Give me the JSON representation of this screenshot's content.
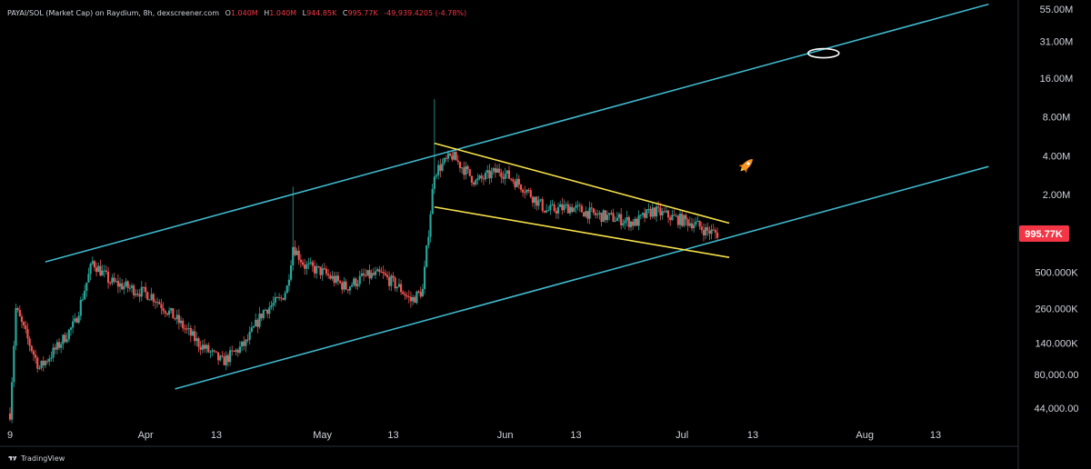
{
  "header": {
    "symbol": "PAYAI/SOL (Market Cap) on Raydium, 8h, dexscreener.com",
    "open_key": "O",
    "open_val": "1.040M",
    "high_key": "H",
    "high_val": "1.040M",
    "low_key": "L",
    "low_val": "944.85K",
    "close_key": "C",
    "close_val": "995.77K",
    "change_val": "-49,939.4205 (-4.78%)"
  },
  "branding": {
    "label": "TradingView"
  },
  "colors": {
    "background": "#000000",
    "up": "#26a69a",
    "down": "#ef5350",
    "channel": "#3fb8cc",
    "wedge": "#f5e04a",
    "price_label_bg": "#f23645",
    "axis_text": "#d1d4dc"
  },
  "icons": {
    "rocket": "rocket-icon",
    "ellipse": "ellipse-annotation-icon"
  },
  "chart_data": {
    "type": "candlestick",
    "title": "",
    "y_scale": "log",
    "y_ticks": [
      "55.00M",
      "31.00M",
      "16.00M",
      "8.00M",
      "4.00M",
      "2.00M",
      "500.000K",
      "260.000K",
      "140.000K",
      "80,000.00",
      "44,000.00"
    ],
    "y_tick_values": [
      55000000,
      31000000,
      16000000,
      8000000,
      4000000,
      2000000,
      500000,
      260000,
      140000,
      80000,
      44000
    ],
    "last_price_label": "995.77K",
    "last_price_value": 995770,
    "x_ticks": [
      "9",
      "Apr",
      "13",
      "May",
      "13",
      "Jun",
      "13",
      "Jul",
      "13",
      "Aug",
      "13"
    ],
    "x_tick_dates": [
      "2024-03-09",
      "2024-04-01",
      "2024-04-13",
      "2024-05-01",
      "2024-05-13",
      "2024-06-01",
      "2024-06-13",
      "2024-07-01",
      "2024-07-13",
      "2024-08-01",
      "2024-08-13"
    ],
    "price_path": [
      [
        "2024-03-09",
        40000
      ],
      [
        "2024-03-10",
        260000
      ],
      [
        "2024-03-12",
        150000
      ],
      [
        "2024-03-14",
        90000
      ],
      [
        "2024-03-17",
        130000
      ],
      [
        "2024-03-20",
        200000
      ],
      [
        "2024-03-23",
        600000
      ],
      [
        "2024-03-26",
        420000
      ],
      [
        "2024-03-29",
        380000
      ],
      [
        "2024-04-02",
        330000
      ],
      [
        "2024-04-06",
        220000
      ],
      [
        "2024-04-10",
        140000
      ],
      [
        "2024-04-14",
        100000
      ],
      [
        "2024-04-18",
        140000
      ],
      [
        "2024-04-21",
        250000
      ],
      [
        "2024-04-24",
        310000
      ],
      [
        "2024-04-25",
        380000
      ],
      [
        "2024-04-26",
        800000
      ],
      [
        "2024-04-28",
        560000
      ],
      [
        "2024-05-01",
        500000
      ],
      [
        "2024-05-05",
        380000
      ],
      [
        "2024-05-08",
        460000
      ],
      [
        "2024-05-11",
        480000
      ],
      [
        "2024-05-14",
        380000
      ],
      [
        "2024-05-16",
        300000
      ],
      [
        "2024-05-18",
        360000
      ],
      [
        "2024-05-20",
        3000000
      ],
      [
        "2024-05-23",
        4000000
      ],
      [
        "2024-05-27",
        2500000
      ],
      [
        "2024-05-31",
        3100000
      ],
      [
        "2024-06-04",
        2300000
      ],
      [
        "2024-06-08",
        1500000
      ],
      [
        "2024-06-12",
        1600000
      ],
      [
        "2024-06-16",
        1400000
      ],
      [
        "2024-06-20",
        1300000
      ],
      [
        "2024-06-23",
        1200000
      ],
      [
        "2024-06-26",
        1500000
      ],
      [
        "2024-06-30",
        1300000
      ],
      [
        "2024-07-03",
        1200000
      ],
      [
        "2024-07-05",
        1050000
      ],
      [
        "2024-07-07",
        995770
      ]
    ],
    "wick_highs": [
      [
        "2024-04-26",
        2300000
      ],
      [
        "2024-05-20",
        11000000
      ]
    ],
    "annotations": {
      "parallel_channel": {
        "color": "channel",
        "upper": [
          [
            "2024-03-15",
            600000
          ],
          [
            "2024-08-22",
            60000000
          ]
        ],
        "lower": [
          [
            "2024-04-06",
            62000
          ],
          [
            "2024-08-22",
            3300000
          ]
        ]
      },
      "falling_wedge": {
        "color": "wedge",
        "upper": [
          [
            "2024-05-20",
            5000000
          ],
          [
            "2024-07-09",
            1200000
          ]
        ],
        "lower": [
          [
            "2024-05-20",
            1600000
          ],
          [
            "2024-07-09",
            650000
          ]
        ]
      },
      "target_ellipse": [
        "2024-07-25",
        25000000
      ],
      "rocket_emoji": [
        "2024-07-12",
        3400000
      ]
    }
  }
}
